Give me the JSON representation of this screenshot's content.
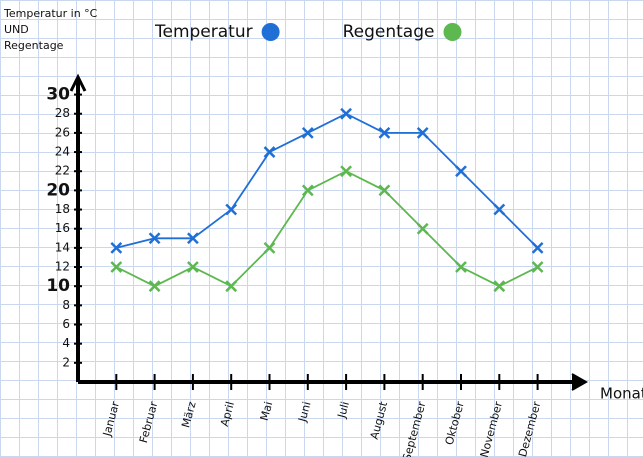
{
  "chart_data": {
    "type": "line",
    "ylabel": [
      "Temperatur in °C",
      "UND",
      "Regentage"
    ],
    "xlabel": "Monate",
    "categories": [
      "Januar",
      "Februar",
      "März",
      "April",
      "Mai",
      "Juni",
      "Juli",
      "August",
      "September",
      "Oktober",
      "November",
      "Dezember"
    ],
    "series": [
      {
        "name": "Temperatur",
        "color": "#1f6fd6",
        "values": [
          14,
          15,
          15,
          18,
          24,
          26,
          28,
          26,
          26,
          22,
          18,
          14
        ]
      },
      {
        "name": "Regentage",
        "color": "#5cb84f",
        "values": [
          12,
          10,
          12,
          10,
          14,
          20,
          22,
          20,
          16,
          12,
          10,
          12
        ]
      }
    ],
    "ylim": [
      0,
      31
    ],
    "yticks": [
      2,
      4,
      6,
      8,
      10,
      12,
      14,
      16,
      18,
      20,
      22,
      24,
      26,
      28,
      30
    ],
    "grid": true,
    "legend": "top"
  }
}
